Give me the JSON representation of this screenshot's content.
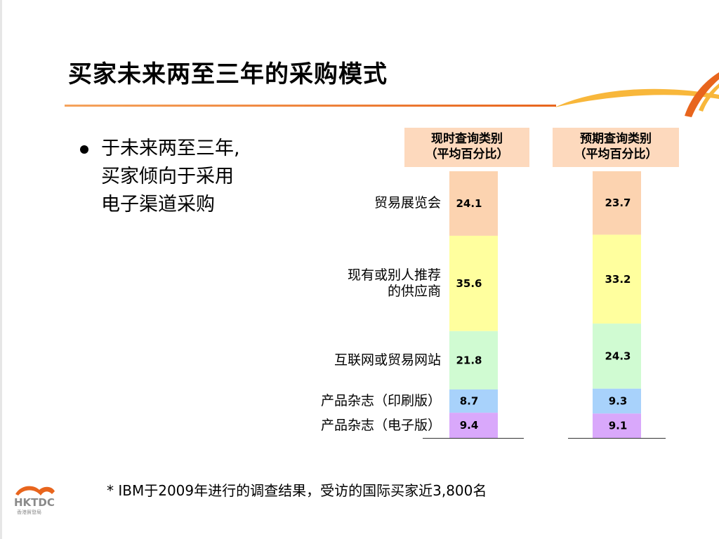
{
  "title": "买家未来两至三年的采购模式",
  "bullet": {
    "lines": [
      "于未来两至三年,",
      "买家倾向于采用",
      "电子渠道采购"
    ]
  },
  "footnote": "* IBM于2009年进行的调查结果，受访的国际买家近3,800名",
  "logo": {
    "text": "HKTDC",
    "subtext": "香港貿發局"
  },
  "colors": {
    "accent": "#e8651d",
    "header_bg": "#fdd9bd"
  },
  "chart_data": {
    "type": "bar",
    "stacked": true,
    "value_unit": "percent",
    "categories": [
      "贸易展览会",
      "现有或别人推荐的供应商",
      "互联网或贸易网站",
      "产品杂志（印刷版）",
      "产品杂志（电子版）"
    ],
    "category_lines": [
      [
        "贸易展览会"
      ],
      [
        "现有或别人推荐",
        "的供应商"
      ],
      [
        "互联网或贸易网站"
      ],
      [
        "产品杂志（印刷版）"
      ],
      [
        "产品杂志（电子版）"
      ]
    ],
    "category_colors": [
      "#fcd3b0",
      "#ffff9e",
      "#d0fbd2",
      "#a8d2fb",
      "#d9a8fb"
    ],
    "series": [
      {
        "header": [
          "现时查询类别",
          "（平均百分比）"
        ],
        "values": [
          24.1,
          35.6,
          21.8,
          8.7,
          9.4
        ]
      },
      {
        "header": [
          "预期查询类别",
          "（平均百分比）"
        ],
        "values": [
          23.7,
          33.2,
          24.3,
          9.3,
          9.1
        ]
      }
    ]
  }
}
